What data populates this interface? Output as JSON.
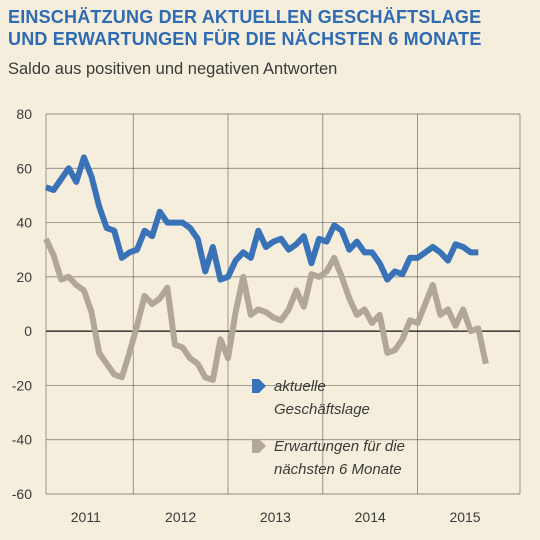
{
  "header": {
    "title_line1": "EINSCHÄTZUNG DER AKTUELLEN GESCHÄFTSLAGE",
    "title_line2": "UND ERWARTUNGEN FÜR DIE NÄCHSTEN 6 MONATE",
    "subtitle": "Saldo aus positiven und negativen Antworten"
  },
  "colors": {
    "background": "#f5eedc",
    "series_current": "#3a72b8",
    "series_expect": "#b2a69b",
    "grid": "#3a3a3a",
    "title": "#2e6bb3"
  },
  "chart_data": {
    "type": "line",
    "title": "EINSCHÄTZUNG DER AKTUELLEN GESCHÄFTSLAGE UND ERWARTUNGEN FÜR DIE NÄCHSTEN 6 MONATE",
    "subtitle": "Saldo aus positiven und negativen Antworten",
    "xlabel": "",
    "ylabel": "",
    "ylim": [
      -60,
      80
    ],
    "xlim": [
      2010.58,
      2015.58
    ],
    "yticks": [
      -60,
      -40,
      -20,
      0,
      20,
      40,
      60,
      80
    ],
    "xtick_labels": [
      "2011",
      "2012",
      "2013",
      "2014",
      "2015"
    ],
    "xtick_centers": [
      2011.0,
      2012.0,
      2013.0,
      2014.0,
      2015.0
    ],
    "year_boundaries": [
      2011.5,
      2012.5,
      2013.5,
      2014.5
    ],
    "zero_line": true,
    "legend_position": "bottom-center",
    "series": [
      {
        "name": "aktuelle Geschäftslage",
        "legend_lines": [
          "aktuelle",
          "Geschäftslage"
        ],
        "points": [
          [
            2010.58,
            53
          ],
          [
            2010.66,
            52
          ],
          [
            2010.74,
            56
          ],
          [
            2010.82,
            60
          ],
          [
            2010.9,
            55
          ],
          [
            2010.98,
            64
          ],
          [
            2011.06,
            57
          ],
          [
            2011.14,
            46
          ],
          [
            2011.22,
            38
          ],
          [
            2011.3,
            37
          ],
          [
            2011.38,
            27
          ],
          [
            2011.46,
            29
          ],
          [
            2011.54,
            30
          ],
          [
            2011.62,
            37
          ],
          [
            2011.7,
            35
          ],
          [
            2011.78,
            44
          ],
          [
            2011.86,
            40
          ],
          [
            2011.94,
            40
          ],
          [
            2012.02,
            40
          ],
          [
            2012.1,
            38
          ],
          [
            2012.18,
            34
          ],
          [
            2012.26,
            22
          ],
          [
            2012.34,
            31
          ],
          [
            2012.42,
            19
          ],
          [
            2012.5,
            20
          ],
          [
            2012.58,
            26
          ],
          [
            2012.66,
            29
          ],
          [
            2012.74,
            27
          ],
          [
            2012.82,
            37
          ],
          [
            2012.9,
            31
          ],
          [
            2012.98,
            33
          ],
          [
            2013.06,
            34
          ],
          [
            2013.14,
            30
          ],
          [
            2013.22,
            32
          ],
          [
            2013.3,
            35
          ],
          [
            2013.38,
            25
          ],
          [
            2013.46,
            34
          ],
          [
            2013.54,
            33
          ],
          [
            2013.62,
            39
          ],
          [
            2013.7,
            37
          ],
          [
            2013.78,
            30
          ],
          [
            2013.86,
            33
          ],
          [
            2013.94,
            29
          ],
          [
            2014.02,
            29
          ],
          [
            2014.1,
            25
          ],
          [
            2014.18,
            19
          ],
          [
            2014.26,
            22
          ],
          [
            2014.34,
            21
          ],
          [
            2014.42,
            27
          ],
          [
            2014.5,
            27
          ],
          [
            2014.58,
            29
          ],
          [
            2014.66,
            31
          ],
          [
            2014.74,
            29
          ],
          [
            2014.82,
            26
          ],
          [
            2014.9,
            32
          ],
          [
            2014.98,
            31
          ],
          [
            2015.06,
            29
          ],
          [
            2015.14,
            29
          ]
        ]
      },
      {
        "name": "Erwartungen für die nächsten 6 Monate",
        "legend_lines": [
          "Erwartungen für die",
          "nächsten 6 Monate"
        ],
        "points": [
          [
            2010.58,
            34
          ],
          [
            2010.66,
            28
          ],
          [
            2010.74,
            19
          ],
          [
            2010.82,
            20
          ],
          [
            2010.9,
            17
          ],
          [
            2010.98,
            15
          ],
          [
            2011.06,
            7
          ],
          [
            2011.14,
            -8
          ],
          [
            2011.22,
            -12
          ],
          [
            2011.3,
            -16
          ],
          [
            2011.38,
            -17
          ],
          [
            2011.46,
            -8
          ],
          [
            2011.54,
            2
          ],
          [
            2011.62,
            13
          ],
          [
            2011.7,
            10
          ],
          [
            2011.78,
            12
          ],
          [
            2011.86,
            16
          ],
          [
            2011.94,
            -5
          ],
          [
            2012.02,
            -6
          ],
          [
            2012.1,
            -10
          ],
          [
            2012.18,
            -12
          ],
          [
            2012.26,
            -17
          ],
          [
            2012.34,
            -18
          ],
          [
            2012.42,
            -3
          ],
          [
            2012.5,
            -10
          ],
          [
            2012.58,
            7
          ],
          [
            2012.66,
            20
          ],
          [
            2012.74,
            6
          ],
          [
            2012.82,
            8
          ],
          [
            2012.9,
            7
          ],
          [
            2012.98,
            5
          ],
          [
            2013.06,
            4
          ],
          [
            2013.14,
            8
          ],
          [
            2013.22,
            15
          ],
          [
            2013.3,
            9
          ],
          [
            2013.38,
            21
          ],
          [
            2013.46,
            20
          ],
          [
            2013.54,
            22
          ],
          [
            2013.62,
            27
          ],
          [
            2013.7,
            20
          ],
          [
            2013.78,
            12
          ],
          [
            2013.86,
            6
          ],
          [
            2013.94,
            8
          ],
          [
            2014.02,
            3
          ],
          [
            2014.1,
            6
          ],
          [
            2014.18,
            -8
          ],
          [
            2014.26,
            -7
          ],
          [
            2014.34,
            -3
          ],
          [
            2014.42,
            4
          ],
          [
            2014.5,
            3
          ],
          [
            2014.58,
            10
          ],
          [
            2014.66,
            17
          ],
          [
            2014.74,
            6
          ],
          [
            2014.82,
            8
          ],
          [
            2014.9,
            2
          ],
          [
            2014.98,
            8
          ],
          [
            2015.06,
            0
          ],
          [
            2015.14,
            1
          ],
          [
            2015.22,
            -12
          ]
        ]
      }
    ]
  }
}
